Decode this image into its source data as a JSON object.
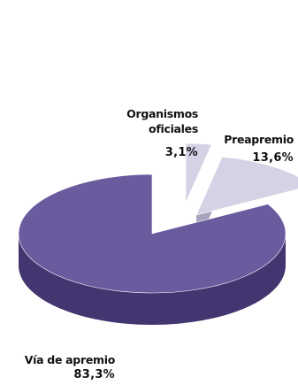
{
  "chart_data": {
    "type": "pie",
    "style": "3d-exploded",
    "series": [
      {
        "values": [
          {
            "label": "Organismos oficiales",
            "label_lines": [
              "Organismos",
              "oficiales"
            ],
            "value": 3.1,
            "value_label": "3,1%",
            "color": "#d6d2e6",
            "side_color": "#938eaa"
          },
          {
            "label": "Preapremio",
            "label_lines": [
              "Preapremio"
            ],
            "value": 13.6,
            "value_label": "13,6%",
            "color": "#d6d2e6",
            "side_color": "#938eaa"
          },
          {
            "label": "Vía de apremio",
            "label_lines": [
              "Vía de apremio"
            ],
            "value": 83.3,
            "value_label": "83,3%",
            "color": "#6a5a9e",
            "side_color": "#43356f"
          }
        ]
      }
    ],
    "title": "",
    "legend": "none"
  }
}
